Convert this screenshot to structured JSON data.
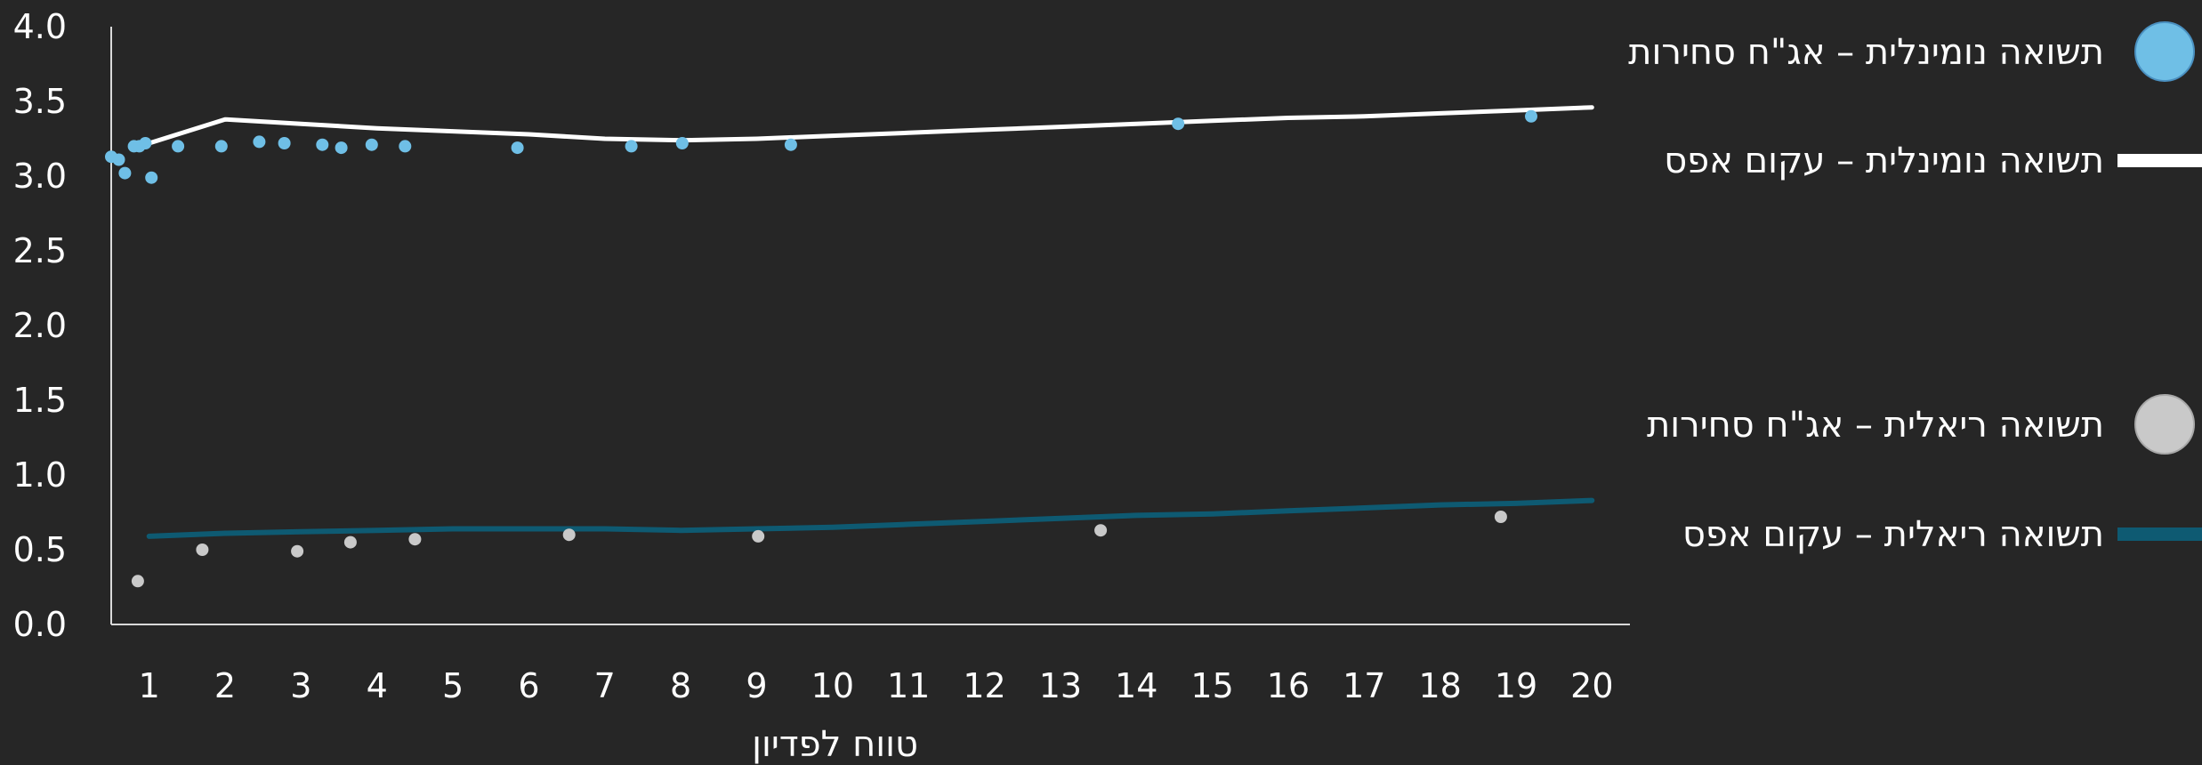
{
  "chart_data": {
    "type": "scatter",
    "title": "",
    "xlabel": "טווח לפדיון",
    "ylabel": "",
    "xlim": [
      0.5,
      20.5
    ],
    "ylim": [
      0,
      4.0
    ],
    "x_ticks": [
      "1",
      "2",
      "3",
      "4",
      "5",
      "6",
      "7",
      "8",
      "9",
      "10",
      "11",
      "12",
      "13",
      "14",
      "15",
      "16",
      "17",
      "18",
      "19",
      "20"
    ],
    "y_ticks": [
      "0.0",
      "0.5",
      "1.0",
      "1.5",
      "2.0",
      "2.5",
      "3.0",
      "3.5",
      "4.0"
    ],
    "grid": false,
    "legend_position": "right",
    "series": [
      {
        "name": "תשואה נומינלית – אג\"ח סחירות",
        "kind": "scatter",
        "color": "#6fbfe6",
        "points": [
          [
            0.5,
            3.13
          ],
          [
            0.6,
            3.11
          ],
          [
            0.68,
            3.02
          ],
          [
            0.8,
            3.2
          ],
          [
            0.87,
            3.2
          ],
          [
            0.95,
            3.22
          ],
          [
            1.03,
            2.99
          ],
          [
            1.38,
            3.2
          ],
          [
            1.95,
            3.2
          ],
          [
            2.45,
            3.23
          ],
          [
            2.78,
            3.22
          ],
          [
            3.28,
            3.21
          ],
          [
            3.53,
            3.19
          ],
          [
            3.93,
            3.21
          ],
          [
            4.37,
            3.2
          ],
          [
            5.85,
            3.19
          ],
          [
            7.35,
            3.2
          ],
          [
            8.02,
            3.22
          ],
          [
            9.45,
            3.21
          ],
          [
            14.55,
            3.35
          ],
          [
            19.2,
            3.4
          ]
        ]
      },
      {
        "name": "תשואה נומינלית – עקום אפס",
        "kind": "line",
        "color": "#ffffff",
        "points": [
          [
            1,
            3.22
          ],
          [
            2,
            3.38
          ],
          [
            3,
            3.35
          ],
          [
            4,
            3.32
          ],
          [
            5,
            3.3
          ],
          [
            6,
            3.28
          ],
          [
            7,
            3.25
          ],
          [
            8,
            3.24
          ],
          [
            9,
            3.25
          ],
          [
            10,
            3.27
          ],
          [
            11,
            3.29
          ],
          [
            12,
            3.31
          ],
          [
            13,
            3.33
          ],
          [
            14,
            3.35
          ],
          [
            15,
            3.37
          ],
          [
            16,
            3.39
          ],
          [
            17,
            3.4
          ],
          [
            18,
            3.42
          ],
          [
            19,
            3.44
          ],
          [
            20,
            3.46
          ]
        ]
      },
      {
        "name": "תשואה ריאלית – אג\"ח סחירות",
        "kind": "scatter",
        "color": "#c9c9c9",
        "points": [
          [
            0.85,
            0.29
          ],
          [
            1.7,
            0.5
          ],
          [
            2.95,
            0.49
          ],
          [
            3.65,
            0.55
          ],
          [
            4.5,
            0.57
          ],
          [
            6.53,
            0.6
          ],
          [
            9.02,
            0.59
          ],
          [
            13.53,
            0.63
          ],
          [
            18.8,
            0.72
          ]
        ]
      },
      {
        "name": "תשואה ריאלית – עקום אפס",
        "kind": "line",
        "color": "#0e5a72",
        "points": [
          [
            1,
            0.59
          ],
          [
            2,
            0.61
          ],
          [
            3,
            0.62
          ],
          [
            4,
            0.63
          ],
          [
            5,
            0.64
          ],
          [
            6,
            0.64
          ],
          [
            7,
            0.64
          ],
          [
            8,
            0.63
          ],
          [
            9,
            0.64
          ],
          [
            10,
            0.65
          ],
          [
            11,
            0.67
          ],
          [
            12,
            0.69
          ],
          [
            13,
            0.71
          ],
          [
            14,
            0.73
          ],
          [
            15,
            0.74
          ],
          [
            16,
            0.76
          ],
          [
            17,
            0.78
          ],
          [
            18,
            0.8
          ],
          [
            19,
            0.81
          ],
          [
            20,
            0.83
          ]
        ]
      }
    ]
  }
}
